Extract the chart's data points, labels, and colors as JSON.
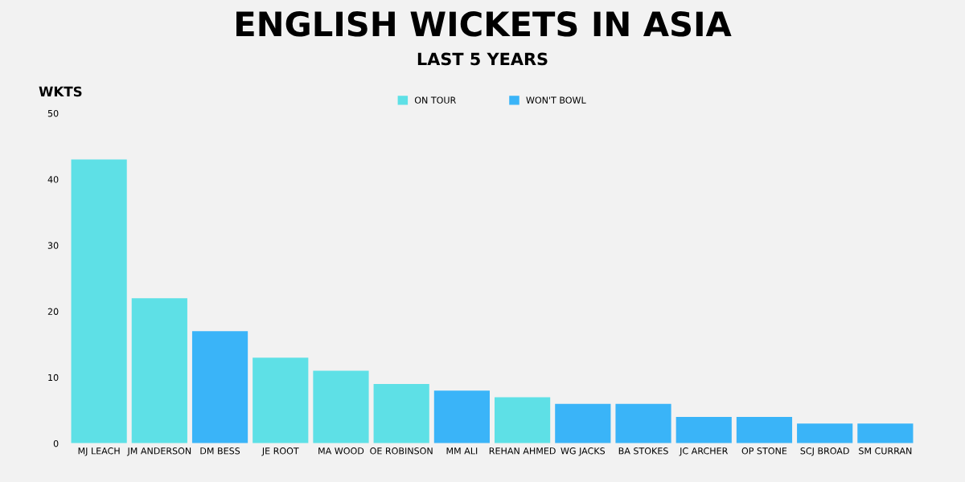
{
  "chart_data": {
    "type": "bar",
    "title": "ENGLISH WICKETS IN ASIA",
    "subtitle": "LAST 5 YEARS",
    "ylabel": "WKTS",
    "categories": [
      "MJ LEACH",
      "JM ANDERSON",
      "DM BESS",
      "JE ROOT",
      "MA WOOD",
      "OE ROBINSON",
      "MM ALI",
      "REHAN AHMED",
      "WG JACKS",
      "BA STOKES",
      "JC ARCHER",
      "OP STONE",
      "SCJ BROAD",
      "SM CURRAN"
    ],
    "series": [
      {
        "name": "ON TOUR",
        "color": "#5ee0e6",
        "values": [
          43,
          22,
          null,
          13,
          11,
          9,
          null,
          7,
          null,
          null,
          null,
          null,
          null,
          null
        ]
      },
      {
        "name": "WON'T BOWL",
        "color": "#3ab4f8",
        "values": [
          null,
          null,
          17,
          null,
          null,
          null,
          8,
          null,
          6,
          6,
          4,
          4,
          3,
          3
        ]
      }
    ],
    "ylim": [
      0,
      50
    ],
    "yticks": [
      0,
      10,
      20,
      30,
      40,
      50
    ],
    "grid": false,
    "legend": "top"
  }
}
